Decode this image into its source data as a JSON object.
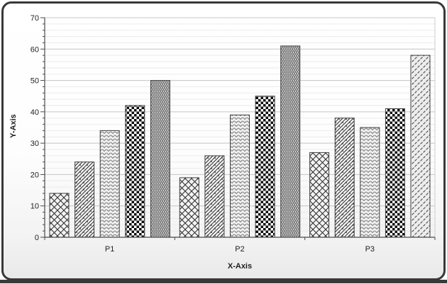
{
  "chart_data": {
    "type": "bar",
    "title": "",
    "xlabel": "X-Axis",
    "ylabel": "Y-Axis",
    "categories": [
      "P1",
      "P2",
      "P3"
    ],
    "series": [
      {
        "name": "diamond-crosshatch",
        "pattern": "diamond",
        "values": [
          14,
          19,
          27
        ]
      },
      {
        "name": "shingle-weave",
        "pattern": "shingle",
        "values": [
          24,
          26,
          38
        ]
      },
      {
        "name": "zigzag-chevron",
        "pattern": "zigzag",
        "values": [
          34,
          39,
          35
        ]
      },
      {
        "name": "checkerboard",
        "pattern": "checker",
        "values": [
          42,
          45,
          41
        ]
      },
      {
        "name": "dotted-grid",
        "pattern": "dots",
        "values": [
          50,
          61,
          58
        ],
        "point_pattern_overrides": {
          "P3": "dash"
        }
      }
    ],
    "ylim": [
      0,
      70
    ],
    "y_major_step": 10,
    "y_minor_step": 2,
    "y_tick_labels": [
      "0",
      "10",
      "20",
      "30",
      "40",
      "50",
      "60",
      "70"
    ],
    "grid": true,
    "legend": "none"
  },
  "colors": {
    "grid_minor": "#ebebeb",
    "grid_major": "#c4c4c4",
    "plot_border": "#cccccc",
    "axis": "#4a4a4a",
    "bar_outline": "#3f3f3f",
    "text": "#1f1f1f",
    "frame_border": "#383838",
    "bottom_strip": "#3a3a3a",
    "pattern_ink": "#2e2e2e",
    "zigzag_ink": "#878787",
    "checker_black": "#101010",
    "dark_bar_bg": "#7c7c7c",
    "dash_ink": "#4b4b4b"
  }
}
